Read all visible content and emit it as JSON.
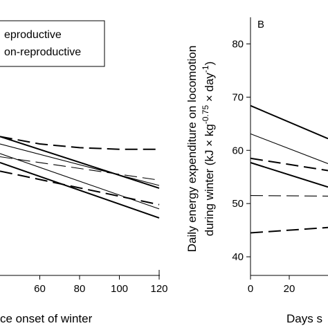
{
  "chart_data": [
    {
      "type": "line",
      "panel_label": "",
      "title": "",
      "xlabel": "ce onset of winter",
      "ylabel": "",
      "x_ticks": [
        "60",
        "80",
        "100",
        "120"
      ],
      "xlim": [
        40,
        120
      ],
      "ylim": [
        36.5,
        85
      ],
      "legend": {
        "placement": "top-left",
        "entries": [
          {
            "label": "eproductive",
            "style": "solid"
          },
          {
            "label": "on-reproductive",
            "style": "dashed"
          }
        ]
      },
      "series": [
        {
          "style": "solid",
          "width": 2,
          "x": [
            40,
            120
          ],
          "y": [
            62.6,
            52.9
          ]
        },
        {
          "style": "solid",
          "width": 1,
          "x": [
            40,
            120
          ],
          "y": [
            61.2,
            53.4
          ]
        },
        {
          "style": "solid",
          "width": 1,
          "x": [
            40,
            120
          ],
          "y": [
            59.4,
            49.0
          ]
        },
        {
          "style": "solid",
          "width": 2,
          "x": [
            40,
            120
          ],
          "y": [
            57.7,
            47.3
          ]
        },
        {
          "style": "dashed",
          "width": 2,
          "x": [
            40,
            60,
            80,
            100,
            120
          ],
          "y": [
            62.6,
            61.2,
            60.5,
            60.2,
            60.2
          ]
        },
        {
          "style": "dashed",
          "width": 1,
          "x": [
            40,
            120
          ],
          "y": [
            58.8,
            54.4
          ]
        },
        {
          "style": "dashed",
          "width": 2,
          "x": [
            40,
            120
          ],
          "y": [
            56.1,
            49.8
          ]
        }
      ]
    },
    {
      "type": "line",
      "panel_label": "B",
      "title": "",
      "xlabel": "Days s",
      "ylabel_line1": "Daily energy expenditure on locomotion",
      "ylabel_line2_prefix": "during winter (kJ × kg",
      "ylabel_sup": "-0.75",
      "ylabel_middle": " × day",
      "ylabel_sup2": "-1",
      "ylabel_end": ")",
      "x_ticks": [
        "0",
        "20"
      ],
      "y_ticks": [
        "40",
        "50",
        "60",
        "70",
        "80"
      ],
      "xlim": [
        0,
        40
      ],
      "ylim": [
        36.5,
        85
      ],
      "series": [
        {
          "style": "solid",
          "width": 2,
          "x": [
            0,
            40
          ],
          "y": [
            68.4,
            62.2
          ]
        },
        {
          "style": "solid",
          "width": 1,
          "x": [
            0,
            40
          ],
          "y": [
            63.1,
            57.5
          ]
        },
        {
          "style": "solid",
          "width": 2,
          "x": [
            0,
            40
          ],
          "y": [
            57.7,
            53.1
          ]
        },
        {
          "style": "dashed",
          "width": 2,
          "x": [
            0,
            40
          ],
          "y": [
            58.5,
            56.2
          ]
        },
        {
          "style": "dashed",
          "width": 1,
          "x": [
            0,
            40
          ],
          "y": [
            51.5,
            51.4
          ]
        },
        {
          "style": "dashed",
          "width": 2,
          "x": [
            0,
            40
          ],
          "y": [
            44.5,
            45.5
          ]
        }
      ]
    }
  ]
}
